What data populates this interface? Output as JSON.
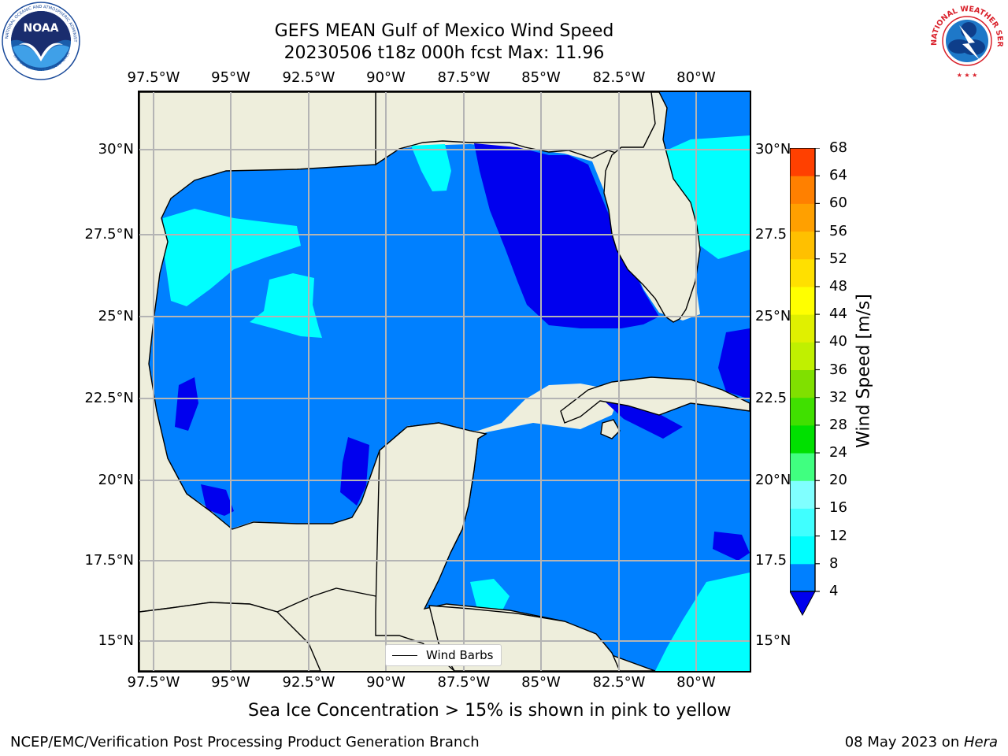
{
  "title": {
    "line1": "GEFS MEAN Gulf of Mexico Wind Speed",
    "line2": "20230506 t18z 000h fcst   Max: 11.96"
  },
  "logos": {
    "noaa": {
      "name": "noaa-logo",
      "text": "NOAA",
      "ring_text": "NATIONAL OCEANIC AND ATMOSPHERIC ADMINISTRATION · U.S. DEPARTMENT OF COMMERCE"
    },
    "nws": {
      "name": "nws-logo",
      "ring_text": "NATIONAL WEATHER SERVICE"
    }
  },
  "map": {
    "projection": "plate carree",
    "lon_range": [
      -98.5,
      -78.7
    ],
    "lat_range": [
      14.0,
      31.8
    ],
    "gridlines": true,
    "land_color": "#eeeedc",
    "grid_color": "#b4b4b4"
  },
  "axes": {
    "lon_ticks": [
      "97.5°W",
      "95°W",
      "92.5°W",
      "90°W",
      "87.5°W",
      "85°W",
      "82.5°W",
      "80°W"
    ],
    "lat_ticks_left": [
      "30°N",
      "27.5°N",
      "25°N",
      "22.5°N",
      "20°N",
      "17.5°N",
      "15°N"
    ],
    "lat_ticks_right": [
      "30°N",
      "27.5",
      "25°N",
      "22.5",
      "20°N",
      "17.5",
      "15°N"
    ]
  },
  "colorbar": {
    "label": "Wind Speed [m/s]",
    "ticks": [
      "68",
      "64",
      "60",
      "56",
      "52",
      "48",
      "44",
      "40",
      "36",
      "32",
      "28",
      "24",
      "20",
      "16",
      "12",
      "8",
      "4"
    ],
    "levels": [
      4,
      8,
      12,
      16,
      20,
      24,
      28,
      32,
      36,
      40,
      44,
      48,
      52,
      56,
      60,
      64,
      68
    ],
    "colors": [
      "#0080ff",
      "#00ffff",
      "#40ffff",
      "#80ffff",
      "#40ff80",
      "#00e000",
      "#40e000",
      "#80e000",
      "#c0f000",
      "#e0f000",
      "#ffff00",
      "#ffe000",
      "#ffc000",
      "#ffa000",
      "#ff8000",
      "#ff4000",
      "#ff1000"
    ],
    "extend_min_color": "#0000ee"
  },
  "legend": {
    "label": "Wind Barbs"
  },
  "subtitle": "Sea Ice Concentration > 15% is shown in pink to yellow",
  "footer": {
    "left": "NCEP/EMC/Verification Post Processing Product Generation Branch",
    "right_date": "08 May 2023 on ",
    "right_host": "Hera"
  }
}
